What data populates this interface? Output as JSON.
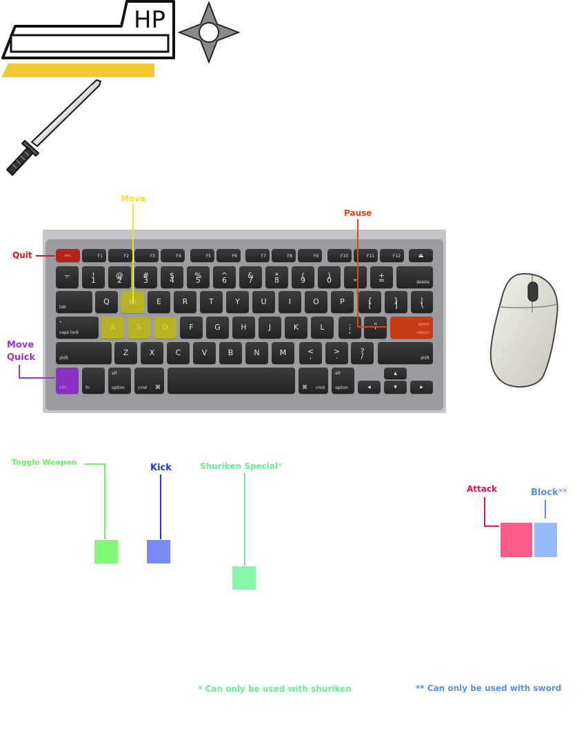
{
  "hud": {
    "hp_label": "HP",
    "hp_fraction": 0,
    "stamina_fraction": 1,
    "stamina_color": "#f0c832",
    "shuriken_icon": "shuriken-icon",
    "sword_icon": "katana-icon"
  },
  "labels": {
    "move": "Move",
    "pause": "Pause",
    "quit": "Quit",
    "move_quick_1": "Move",
    "move_quick_2": "Quick",
    "toggle_weapon": "Toggle Weapon",
    "kick": "Kick",
    "shuriken_special": "Shuriken Special",
    "shuriken_special_mark": "*",
    "attack": "Attack",
    "block": "Block",
    "block_mark": "**"
  },
  "colors": {
    "move": "#f2e224",
    "pause": "#e64414",
    "quit": "#d4141e",
    "move_quick": "#9a30dc",
    "toggle_weapon": "#70f060",
    "kick": "#1c34dc",
    "shuriken_special": "#68f096",
    "attack": "#e01450",
    "block": "#5a8ef0",
    "toggle_square": "#80f878",
    "kick_square": "#7a88f8",
    "shuriken_square": "#88f8a8",
    "attack_square": "#fa5c88",
    "block_square": "#96bcfa"
  },
  "keyboard": {
    "esc": "esc",
    "f1": "F1",
    "f2": "F2",
    "f3": "F3",
    "f4": "F4",
    "f5": "F5",
    "f6": "F6",
    "f7": "F7",
    "f8": "F8",
    "f9": "F9",
    "f10": "F10",
    "f11": "F11",
    "f12": "F12",
    "num": [
      {
        "top": "~",
        "bot": "`"
      },
      {
        "top": "!",
        "bot": "1"
      },
      {
        "top": "@",
        "bot": "2"
      },
      {
        "top": "#",
        "bot": "3"
      },
      {
        "top": "$",
        "bot": "4"
      },
      {
        "top": "%",
        "bot": "5"
      },
      {
        "top": "^",
        "bot": "6"
      },
      {
        "top": "&",
        "bot": "7"
      },
      {
        "top": "*",
        "bot": "8"
      },
      {
        "top": "(",
        "bot": "9"
      },
      {
        "top": ")",
        "bot": "0"
      },
      {
        "top": "_",
        "bot": "-"
      },
      {
        "top": "+",
        "bot": "="
      }
    ],
    "delete": "delete",
    "tab": "tab",
    "row_q": [
      "Q",
      "W",
      "E",
      "R",
      "T",
      "Y",
      "U",
      "I",
      "O",
      "P"
    ],
    "bracket_l": {
      "top": "{",
      "bot": "["
    },
    "bracket_r": {
      "top": "}",
      "bot": "]"
    },
    "pipe": {
      "top": "|",
      "bot": "\\"
    },
    "caps_dot": "•",
    "caps": "caps lock",
    "row_a": [
      "A",
      "S",
      "D",
      "F",
      "G",
      "H",
      "J",
      "K",
      "L"
    ],
    "colon": {
      "top": ":",
      "bot": ";"
    },
    "quote": {
      "top": "\"",
      "bot": "'"
    },
    "enter": "enter",
    "return": "return",
    "shift": "shift",
    "row_z": [
      "Z",
      "X",
      "C",
      "V",
      "B",
      "N",
      "M"
    ],
    "lt": {
      "top": "<",
      "bot": ","
    },
    "gt": {
      "top": ">",
      "bot": "."
    },
    "qm": {
      "top": "?",
      "bot": "/"
    },
    "ctrl": "ctrl",
    "fn": "fn",
    "alt": "alt",
    "option": "option",
    "cmd": "cmd",
    "cmd_sym": "⌘",
    "left": "◀",
    "right": "▶",
    "up": "▲",
    "down": "▼"
  },
  "footnotes": {
    "single": "* Can only be used with shuriken",
    "double": "** Can only be used with sword"
  }
}
